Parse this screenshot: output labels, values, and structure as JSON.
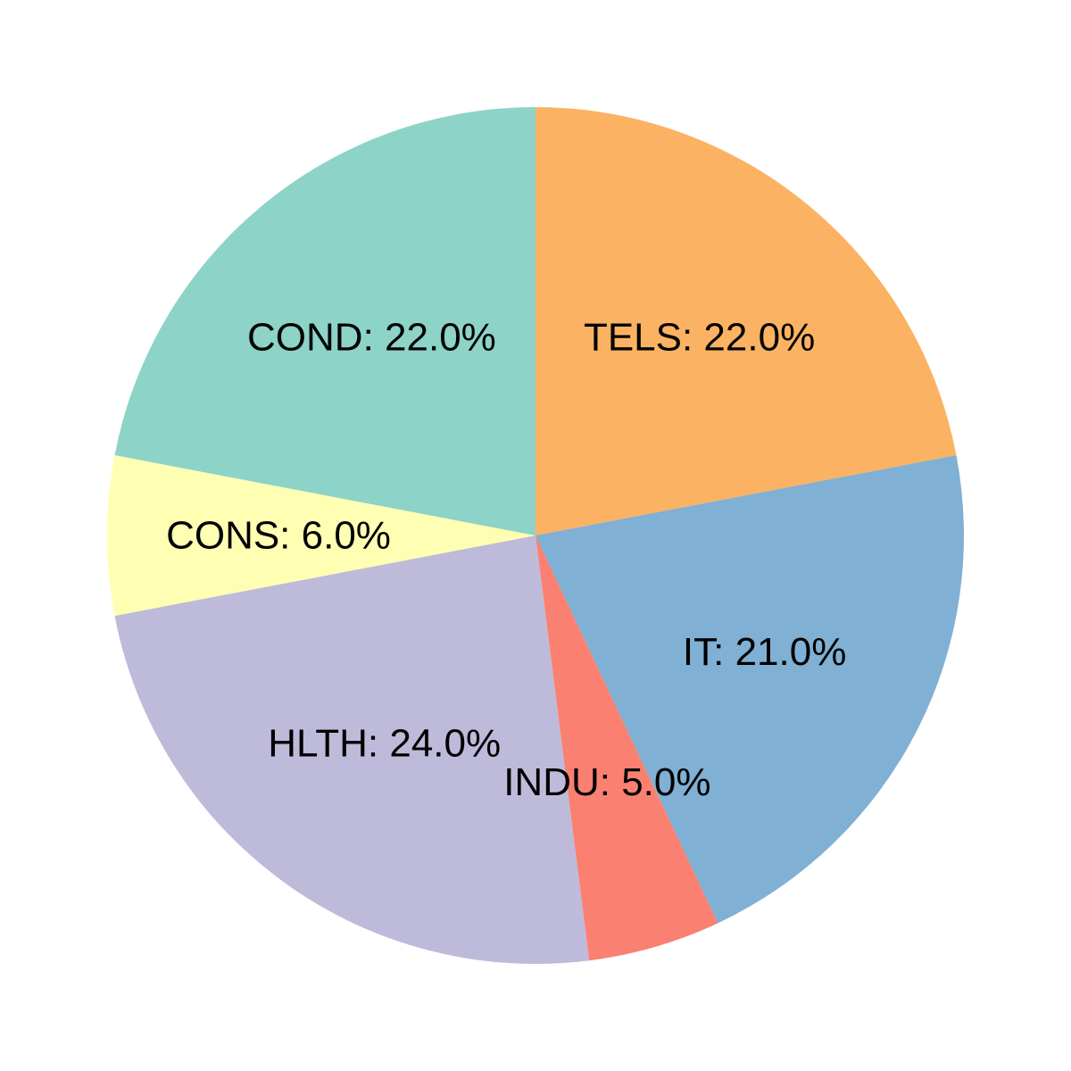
{
  "chart_data": {
    "type": "pie",
    "title": "",
    "slices": [
      {
        "label": "TELS",
        "value": 22.0,
        "label_text": "TELS: 22.0%",
        "color": "#fbb263"
      },
      {
        "label": "IT",
        "value": 21.0,
        "label_text": "IT: 21.0%",
        "color": "#80b0d3"
      },
      {
        "label": "INDU",
        "value": 5.0,
        "label_text": "INDU: 5.0%",
        "color": "#fa8072"
      },
      {
        "label": "HLTH",
        "value": 24.0,
        "label_text": "HLTH: 24.0%",
        "color": "#bebada"
      },
      {
        "label": "CONS",
        "value": 6.0,
        "label_text": "CONS: 6.0%",
        "color": "#ffffb3"
      },
      {
        "label": "COND",
        "value": 22.0,
        "label_text": "COND: 22.0%",
        "color": "#8dd3c7"
      }
    ],
    "start_angle": "12 o'clock",
    "direction": "clockwise",
    "legend": "none"
  }
}
